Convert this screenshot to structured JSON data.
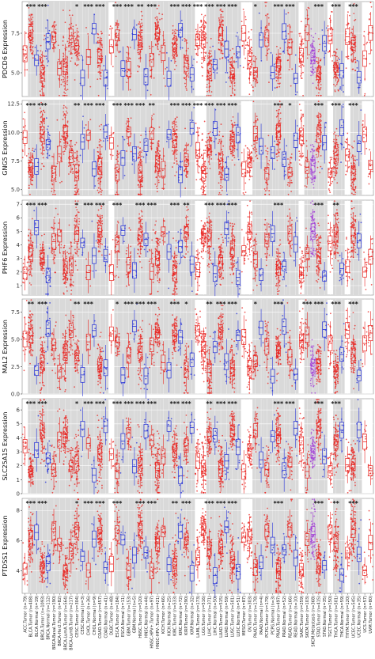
{
  "chart_data": {
    "type": "box",
    "categories": [
      "ACC.Tumor (n=79)",
      "BLCA.Tumor (n=408)",
      "BLCA.Normal (n=19)",
      "BRCA.Tumor (n=1093)",
      "BRCA.Normal (n=112)",
      "BRCA-Basal.Tumor (n=190)",
      "BRCA-Her2.Tumor (n=82)",
      "BRCA-LumA.Tumor (n=564)",
      "BRCA-LumB.Tumor (n=217)",
      "CESC.Tumor (n=304)",
      "CESC.Normal (n=3)",
      "CHOL.Tumor (n=36)",
      "CHOL.Normal (n=9)",
      "COAD.Tumor (n=457)",
      "COAD.Normal (n=41)",
      "DLBC.Tumor (n=48)",
      "ESCA.Tumor (n=184)",
      "ESCA.Normal (n=11)",
      "GBM.Tumor (n=153)",
      "GBM.Normal (n=5)",
      "HNSC.Tumor (n=520)",
      "HNSC.Normal (n=44)",
      "HNSC-HPV+.Tumor (n=97)",
      "HNSC-HPV-.Tumor (n=421)",
      "KICH.Tumor (n=66)",
      "KICH.Normal (n=25)",
      "KIRC.Tumor (n=533)",
      "KIRC.Normal (n=72)",
      "KIRP.Tumor (n=290)",
      "KIRP.Normal (n=32)",
      "LAML.Tumor (n=173)",
      "LGG.Tumor (n=516)",
      "LIHC.Tumor (n=371)",
      "LIHC.Normal (n=50)",
      "LUAD.Tumor (n=515)",
      "LUAD.Normal (n=59)",
      "LUSC.Tumor (n=501)",
      "LUSC.Normal (n=51)",
      "MESO.Tumor (n=87)",
      "OV.Tumor (n=303)",
      "PAAD.Tumor (n=178)",
      "PAAD.Normal (n=4)",
      "PCPG.Tumor (n=179)",
      "PCPG.Normal (n=3)",
      "PRAD.Tumor (n=497)",
      "PRAD.Normal (n=52)",
      "READ.Tumor (n=166)",
      "READ.Normal (n=10)",
      "SARC.Tumor (n=259)",
      "SKCM.Tumor (n=103)",
      "SKCM.Metastasis (n=368)",
      "STAD.Tumor (n=415)",
      "STAD.Normal (n=35)",
      "TGCT.Tumor (n=150)",
      "THCA.Tumor (n=501)",
      "THCA.Normal (n=59)",
      "THYM.Tumor (n=120)",
      "UCEC.Tumor (n=545)",
      "UCEC.Normal (n=35)",
      "UCS.Tumor (n=57)",
      "UVM.Tumor (n=80)"
    ],
    "panels": [
      {
        "ylabel": "PDCD6 Expression",
        "ylim": [
          3.5,
          9.5
        ],
        "ticks": [
          5.0,
          7.5
        ],
        "significance": [
          {
            "x": 1,
            "label": "***"
          },
          {
            "x": 3,
            "label": "***"
          },
          {
            "x": 9,
            "label": "*"
          },
          {
            "x": 11,
            "label": "***"
          },
          {
            "x": 13,
            "label": "***"
          },
          {
            "x": 16,
            "label": "***"
          },
          {
            "x": 18,
            "label": "***"
          },
          {
            "x": 20,
            "label": "**"
          },
          {
            "x": 22,
            "label": "***"
          },
          {
            "x": 26,
            "label": "***"
          },
          {
            "x": 28,
            "label": "***"
          },
          {
            "x": 30,
            "label": "***"
          },
          {
            "x": 32,
            "label": "***"
          },
          {
            "x": 34,
            "label": "***"
          },
          {
            "x": 36,
            "label": "***"
          },
          {
            "x": 40,
            "label": "*"
          },
          {
            "x": 44,
            "label": "***"
          },
          {
            "x": 46,
            "label": "***"
          },
          {
            "x": 51,
            "label": "***"
          },
          {
            "x": 54,
            "label": "***"
          },
          {
            "x": 57,
            "label": "***"
          }
        ]
      },
      {
        "ylabel": "GNG5 Expression",
        "ylim": [
          4.5,
          12.8
        ],
        "ticks": [
          5.0,
          7.5,
          10.0,
          12.5
        ],
        "significance": [
          {
            "x": 1,
            "label": "***"
          },
          {
            "x": 3,
            "label": "***"
          },
          {
            "x": 9,
            "label": "**"
          },
          {
            "x": 11,
            "label": "***"
          },
          {
            "x": 13,
            "label": "***"
          },
          {
            "x": 16,
            "label": "***"
          },
          {
            "x": 18,
            "label": "***"
          },
          {
            "x": 20,
            "label": "***"
          },
          {
            "x": 22,
            "label": "**"
          },
          {
            "x": 26,
            "label": "***"
          },
          {
            "x": 28,
            "label": "***"
          },
          {
            "x": 30,
            "label": "***"
          },
          {
            "x": 32,
            "label": "***"
          },
          {
            "x": 34,
            "label": "***"
          },
          {
            "x": 36,
            "label": "***"
          },
          {
            "x": 44,
            "label": "***"
          },
          {
            "x": 46,
            "label": "*"
          },
          {
            "x": 51,
            "label": "***"
          },
          {
            "x": 54,
            "label": "***"
          },
          {
            "x": 57,
            "label": "***"
          }
        ]
      },
      {
        "ylabel": "PHF6 Expression",
        "ylim": [
          0.3,
          7.3
        ],
        "ticks": [
          1,
          2,
          3,
          4,
          5,
          6,
          7
        ],
        "significance": [
          {
            "x": 1,
            "label": "***"
          },
          {
            "x": 3,
            "label": "***"
          },
          {
            "x": 9,
            "label": "*"
          },
          {
            "x": 11,
            "label": "***"
          },
          {
            "x": 13,
            "label": "***"
          },
          {
            "x": 16,
            "label": "***"
          },
          {
            "x": 20,
            "label": "***"
          },
          {
            "x": 22,
            "label": "***"
          },
          {
            "x": 26,
            "label": "***"
          },
          {
            "x": 28,
            "label": "**"
          },
          {
            "x": 32,
            "label": "***"
          },
          {
            "x": 34,
            "label": "***"
          },
          {
            "x": 36,
            "label": "***"
          },
          {
            "x": 44,
            "label": "***"
          },
          {
            "x": 51,
            "label": "***"
          },
          {
            "x": 54,
            "label": "**"
          }
        ]
      },
      {
        "ylabel": "MAL2 Expression",
        "ylim": [
          0,
          8.7
        ],
        "ticks": [
          0.0,
          2.5,
          5.0,
          7.5
        ],
        "significance": [
          {
            "x": 1,
            "label": "**"
          },
          {
            "x": 3,
            "label": "***"
          },
          {
            "x": 9,
            "label": "**"
          },
          {
            "x": 11,
            "label": "***"
          },
          {
            "x": 16,
            "label": "*"
          },
          {
            "x": 18,
            "label": "***"
          },
          {
            "x": 20,
            "label": "***"
          },
          {
            "x": 22,
            "label": "***"
          },
          {
            "x": 26,
            "label": "***"
          },
          {
            "x": 28,
            "label": "*"
          },
          {
            "x": 32,
            "label": "**"
          },
          {
            "x": 34,
            "label": "***"
          },
          {
            "x": 36,
            "label": "***"
          },
          {
            "x": 40,
            "label": "*"
          },
          {
            "x": 44,
            "label": "***"
          },
          {
            "x": 49,
            "label": "***"
          },
          {
            "x": 51,
            "label": "***"
          },
          {
            "x": 54,
            "label": "***"
          },
          {
            "x": 57,
            "label": "***"
          }
        ]
      },
      {
        "ylabel": "SLC25A15 Expression",
        "ylim": [
          0,
          6.8
        ],
        "ticks": [
          0,
          1,
          2,
          3,
          4,
          5,
          6
        ],
        "significance": [
          {
            "x": 1,
            "label": "***"
          },
          {
            "x": 3,
            "label": "***"
          },
          {
            "x": 9,
            "label": "*"
          },
          {
            "x": 11,
            "label": "***"
          },
          {
            "x": 13,
            "label": "***"
          },
          {
            "x": 16,
            "label": "***"
          },
          {
            "x": 18,
            "label": "***"
          },
          {
            "x": 20,
            "label": "***"
          },
          {
            "x": 22,
            "label": "***"
          },
          {
            "x": 26,
            "label": "***"
          },
          {
            "x": 28,
            "label": "***"
          },
          {
            "x": 32,
            "label": "**"
          },
          {
            "x": 34,
            "label": "***"
          },
          {
            "x": 36,
            "label": "***"
          },
          {
            "x": 44,
            "label": "***"
          },
          {
            "x": 46,
            "label": "***"
          },
          {
            "x": 51,
            "label": "***"
          },
          {
            "x": 54,
            "label": "***"
          }
        ]
      },
      {
        "ylabel": "PTDSS1 Expression",
        "ylim": [
          2.5,
          8.8
        ],
        "ticks": [
          4,
          6,
          8
        ],
        "significance": [
          {
            "x": 1,
            "label": "***"
          },
          {
            "x": 3,
            "label": "***"
          },
          {
            "x": 9,
            "label": "*"
          },
          {
            "x": 11,
            "label": "***"
          },
          {
            "x": 13,
            "label": "***"
          },
          {
            "x": 16,
            "label": "***"
          },
          {
            "x": 20,
            "label": "***"
          },
          {
            "x": 22,
            "label": "***"
          },
          {
            "x": 26,
            "label": "**"
          },
          {
            "x": 28,
            "label": "***"
          },
          {
            "x": 32,
            "label": "***"
          },
          {
            "x": 34,
            "label": "***"
          },
          {
            "x": 36,
            "label": "***"
          },
          {
            "x": 44,
            "label": "***"
          },
          {
            "x": 51,
            "label": "***"
          },
          {
            "x": 54,
            "label": "**"
          },
          {
            "x": 57,
            "label": "***"
          }
        ]
      }
    ],
    "colors": {
      "tumor": "#e8231f",
      "normal": "#2430d8",
      "metastasis": "#a23ed6",
      "shade": "#d9d9d9",
      "grid": "#ffffff"
    },
    "grid": true,
    "legend": "none"
  }
}
